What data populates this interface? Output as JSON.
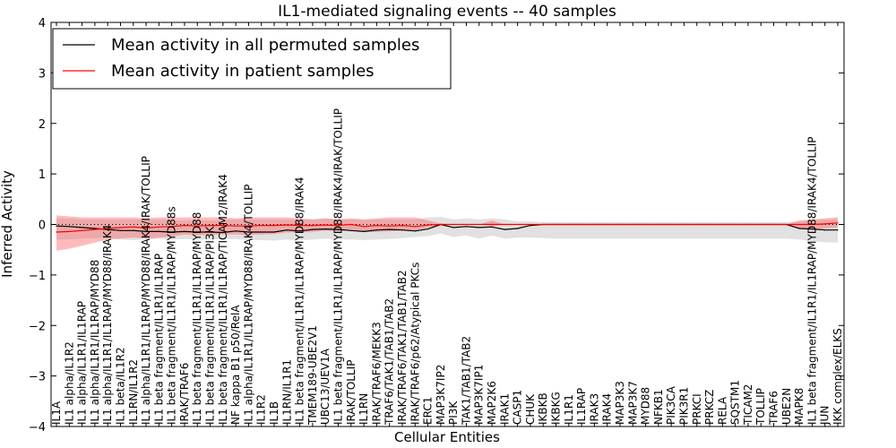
{
  "chart_data": {
    "type": "line",
    "title": "IL1-mediated signaling events -- 40 samples",
    "xlabel": "Cellular Entities",
    "ylabel": "Inferred Activity",
    "ylim": [
      -4,
      4
    ],
    "yticks": [
      "−4",
      "−3",
      "−2",
      "−1",
      "0",
      "1",
      "2",
      "3",
      "4"
    ],
    "ytick_values": [
      -4,
      -3,
      -2,
      -1,
      0,
      1,
      2,
      3,
      4
    ],
    "legend": {
      "position": "top-left",
      "entries": [
        {
          "label": "Mean activity in all permuted samples",
          "color": "#000000"
        },
        {
          "label": "Mean activity in patient samples",
          "color": "#ff0000"
        }
      ]
    },
    "categories": [
      "IL1A",
      "IL1 alpha/IL1R2",
      "IL1 alpha/IL1R1/IL1RAP",
      "IL1 alpha/IL1R1/IL1RAP/MYD88",
      "IL1 alpha/IL1R1/IL1RAP/MYD88/IRAK4",
      "IL1 beta/IL1R2",
      "IL1RN/IL1R2",
      "IL1 alpha/IL1R1/IL1RAP/MYD88/IRAK4/IRAK/TOLLIP",
      "IL1 beta fragment/IL1R1/IL1RAP",
      "IL1 beta fragment/IL1R1/IL1RAP/MYD88s",
      "IRAK/TRAF6",
      "IL1 beta fragment/IL1R1/IL1RAP/MYD88",
      "IL1 beta fragment/IL1R1/IL1RAP/PI3K",
      "IL1 beta fragment/IL1R1/IL1RAP/TICAM2/IRAK4",
      "NF kappa B1 p50/RelA",
      "IL1 alpha/IL1R1/IL1RAP/MYD88/IRAK4/TOLLIP",
      "IL1R2",
      "IL1B",
      "IL1RN/IL1R1",
      "IL1 beta fragment/IL1R1/IL1RAP/MYD88/IRAK4",
      "TMEM189-UBE2V1",
      "UBC13/UEV1A",
      "IL1 beta fragment/IL1R1/IL1RAP/MYD88/IRAK4/IRAK/TOLLIP",
      "IRAK/TOLLIP",
      "IL1RN",
      "IRAK/TRAF6/MEKK3",
      "TRAF6/TAK1/TAB1/TAB2",
      "IRAK/TRAF6/TAK1/TAB1/TAB2",
      "IRAK/TRAF6/p62/Atypical PKCs",
      "ERC1",
      "MAP3K7IP2",
      "PI3K",
      "TAK1/TAB1/TAB2",
      "MAP3K7IP1",
      "MAP2K6",
      "IRAK1",
      "CASP1",
      "CHUK",
      "IKBKB",
      "IKBKG",
      "IL1R1",
      "IL1RAP",
      "IRAK3",
      "IRAK4",
      "MAP3K3",
      "MAP3K7",
      "MYD88",
      "NFKB1",
      "PIK3CA",
      "PIK3R1",
      "PRKCI",
      "PRKCZ",
      "RELA",
      "SQSTM1",
      "TICAM2",
      "TOLLIP",
      "TRAF6",
      "UBE2N",
      "MAPK8",
      "IL1 beta fragment/IL1R1/IL1RAP/MYD88/IRAK4/TOLLIP",
      "JUN",
      "IKK complex/ELKS"
    ],
    "series": [
      {
        "name": "Mean activity in all permuted samples",
        "color": "#000000",
        "values": [
          -0.03,
          -0.04,
          -0.06,
          -0.08,
          -0.1,
          -0.12,
          -0.12,
          -0.14,
          -0.14,
          -0.15,
          -0.14,
          -0.15,
          -0.15,
          -0.16,
          -0.13,
          -0.15,
          -0.15,
          -0.15,
          -0.11,
          -0.13,
          -0.1,
          -0.09,
          -0.1,
          -0.12,
          -0.14,
          -0.11,
          -0.1,
          -0.11,
          -0.13,
          -0.09,
          0.0,
          -0.06,
          -0.04,
          -0.06,
          -0.05,
          -0.1,
          -0.08,
          -0.02,
          0.0,
          0.0,
          0.0,
          0.0,
          0.0,
          0.0,
          0.0,
          0.0,
          0.0,
          0.0,
          0.0,
          0.0,
          0.0,
          0.0,
          0.0,
          0.0,
          0.0,
          0.0,
          0.0,
          0.0,
          -0.08,
          -0.09,
          -0.11,
          -0.11
        ],
        "band_low": [
          -0.3,
          -0.3,
          -0.28,
          -0.27,
          -0.26,
          -0.3,
          -0.31,
          -0.3,
          -0.28,
          -0.3,
          -0.29,
          -0.3,
          -0.3,
          -0.29,
          -0.29,
          -0.31,
          -0.31,
          -0.32,
          -0.3,
          -0.31,
          -0.3,
          -0.28,
          -0.3,
          -0.3,
          -0.31,
          -0.3,
          -0.29,
          -0.27,
          -0.25,
          -0.23,
          -0.18,
          -0.25,
          -0.22,
          -0.28,
          -0.22,
          -0.28,
          -0.26,
          -0.26,
          -0.27,
          -0.28,
          -0.28,
          -0.28,
          -0.28,
          -0.28,
          -0.28,
          -0.28,
          -0.28,
          -0.28,
          -0.28,
          -0.28,
          -0.28,
          -0.28,
          -0.28,
          -0.28,
          -0.28,
          -0.28,
          -0.28,
          -0.28,
          -0.3,
          -0.33,
          -0.35,
          -0.36
        ],
        "band_high": [
          0.12,
          0.12,
          0.1,
          0.1,
          0.1,
          0.1,
          0.1,
          0.1,
          0.1,
          0.08,
          0.08,
          0.08,
          0.08,
          0.08,
          0.1,
          0.1,
          0.1,
          0.1,
          0.1,
          0.1,
          0.1,
          0.12,
          0.1,
          0.1,
          0.09,
          0.1,
          0.1,
          0.1,
          0.1,
          0.14,
          0.15,
          0.1,
          0.12,
          0.1,
          0.12,
          0.1,
          0.06,
          0.06,
          0.05,
          0.05,
          0.05,
          0.05,
          0.05,
          0.05,
          0.05,
          0.05,
          0.05,
          0.05,
          0.05,
          0.05,
          0.05,
          0.05,
          0.05,
          0.05,
          0.05,
          0.05,
          0.05,
          0.05,
          0.06,
          0.08,
          0.1,
          0.1
        ]
      },
      {
        "name": "Mean activity in patient samples",
        "color": "#ff0000",
        "values": [
          -0.15,
          -0.14,
          -0.12,
          -0.1,
          -0.08,
          -0.06,
          -0.05,
          -0.07,
          -0.05,
          -0.04,
          -0.02,
          -0.03,
          -0.02,
          -0.02,
          -0.03,
          -0.03,
          -0.02,
          -0.02,
          -0.01,
          -0.02,
          -0.02,
          -0.01,
          -0.02,
          0.0,
          -0.04,
          -0.02,
          -0.03,
          -0.02,
          -0.04,
          -0.01,
          0.0,
          0.0,
          0.0,
          0.0,
          0.0,
          0.0,
          0.0,
          0.0,
          0.0,
          0.0,
          0.0,
          0.0,
          0.0,
          0.0,
          0.0,
          0.0,
          0.0,
          0.0,
          0.0,
          0.0,
          0.0,
          0.0,
          0.0,
          0.0,
          0.0,
          0.0,
          0.0,
          0.0,
          0.0,
          0.0,
          0.01,
          0.03
        ],
        "band_low": [
          -0.52,
          -0.48,
          -0.42,
          -0.36,
          -0.3,
          -0.28,
          -0.26,
          -0.28,
          -0.26,
          -0.24,
          -0.2,
          -0.22,
          -0.2,
          -0.2,
          -0.2,
          -0.21,
          -0.2,
          -0.19,
          -0.16,
          -0.16,
          -0.15,
          -0.12,
          -0.14,
          -0.1,
          -0.15,
          -0.15,
          -0.14,
          -0.12,
          -0.12,
          -0.06,
          -0.02,
          0.0,
          0.0,
          0.0,
          -0.04,
          0.0,
          0.0,
          0.0,
          0.0,
          0.0,
          0.0,
          0.0,
          0.0,
          0.0,
          0.0,
          0.0,
          0.0,
          0.0,
          0.0,
          0.0,
          0.0,
          0.0,
          0.0,
          0.0,
          0.0,
          0.0,
          0.0,
          0.0,
          -0.08,
          -0.1,
          -0.08,
          -0.06
        ],
        "band_high": [
          0.18,
          0.16,
          0.14,
          0.14,
          0.14,
          0.14,
          0.14,
          0.12,
          0.14,
          0.14,
          0.14,
          0.14,
          0.14,
          0.14,
          0.12,
          0.14,
          0.14,
          0.14,
          0.14,
          0.12,
          0.1,
          0.12,
          0.1,
          0.12,
          0.1,
          0.12,
          0.14,
          0.14,
          0.14,
          0.08,
          0.02,
          0.0,
          0.0,
          0.0,
          0.08,
          0.0,
          0.0,
          0.0,
          0.0,
          0.0,
          0.0,
          0.0,
          0.0,
          0.0,
          0.0,
          0.0,
          0.0,
          0.0,
          0.0,
          0.0,
          0.0,
          0.0,
          0.0,
          0.0,
          0.0,
          0.0,
          0.0,
          0.0,
          0.08,
          0.1,
          0.12,
          0.14
        ]
      }
    ]
  }
}
